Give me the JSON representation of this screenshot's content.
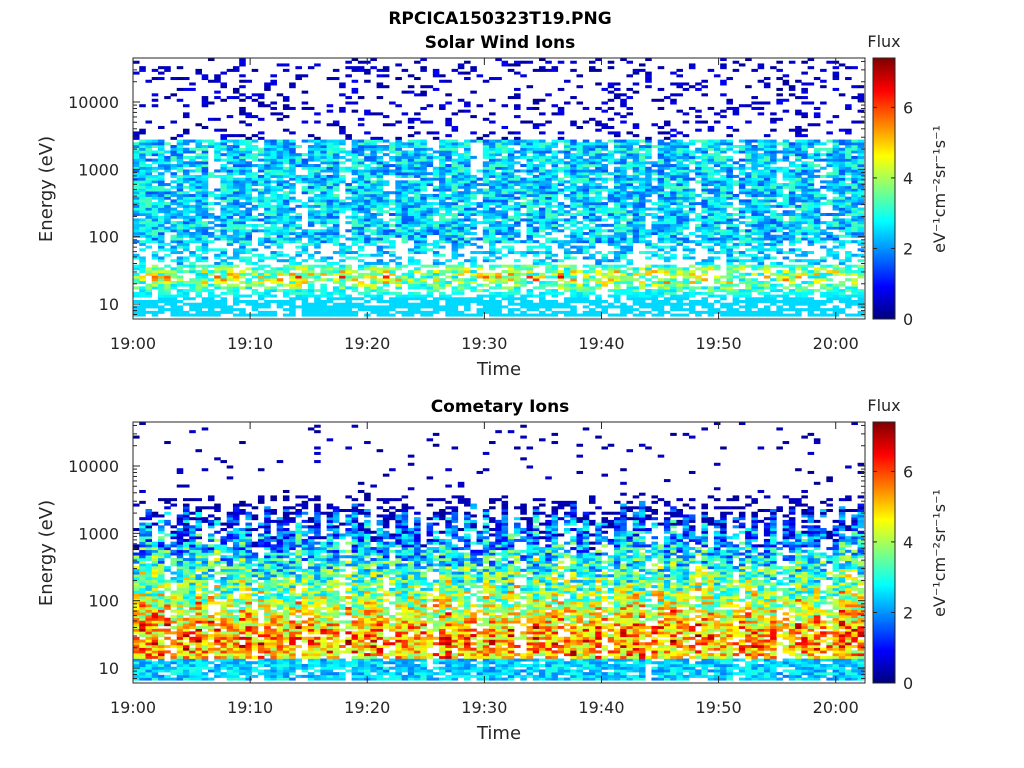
{
  "figure": {
    "title": "RPCICA150323T19.PNG"
  },
  "colorbar": {
    "label": "Flux",
    "unit_text": "eV⁻¹cm⁻²sr⁻¹s⁻¹",
    "ticks": [
      "0",
      "2",
      "4",
      "6"
    ],
    "range": [
      0,
      7.4
    ],
    "colormap": "jet"
  },
  "chart_data": [
    {
      "type": "heatmap",
      "title": "Solar Wind Ions",
      "xlabel": "Time",
      "ylabel": "Energy (eV)",
      "x_ticks": [
        "19:00",
        "19:10",
        "19:20",
        "19:30",
        "19:40",
        "19:50",
        "20:00"
      ],
      "x_range_minutes_after_19_00": [
        0,
        62.5
      ],
      "y_ticks": [
        "10",
        "100",
        "1000",
        "10000"
      ],
      "y_range_eV": [
        6,
        45000
      ],
      "y_scale": "log",
      "colorbar_range": [
        0,
        7.4
      ],
      "profile": {
        "sw_band_eV": [
          80,
          2800
        ],
        "sw_band_flux": [
          1.5,
          3.4
        ],
        "low_energy_peak_eV": 25,
        "low_energy_peak_flux": [
          2.5,
          6.0
        ],
        "sparse_high_energy_flux": [
          0.1,
          0.9
        ]
      }
    },
    {
      "type": "heatmap",
      "title": "Cometary Ions",
      "xlabel": "Time",
      "ylabel": "Energy (eV)",
      "x_ticks": [
        "19:00",
        "19:10",
        "19:20",
        "19:30",
        "19:40",
        "19:50",
        "20:00"
      ],
      "x_range_minutes_after_19_00": [
        0,
        62.5
      ],
      "y_ticks": [
        "10",
        "100",
        "1000",
        "10000"
      ],
      "y_range_eV": [
        6,
        45000
      ],
      "y_scale": "log",
      "colorbar_range": [
        0,
        7.4
      ],
      "profile": {
        "peak_energy_eV": 25,
        "peak_flux": [
          4.0,
          7.0
        ],
        "upper_cutoff_eV": [
          500,
          3000
        ],
        "sparse_high_energy_flux": [
          0.1,
          0.6
        ]
      }
    }
  ]
}
